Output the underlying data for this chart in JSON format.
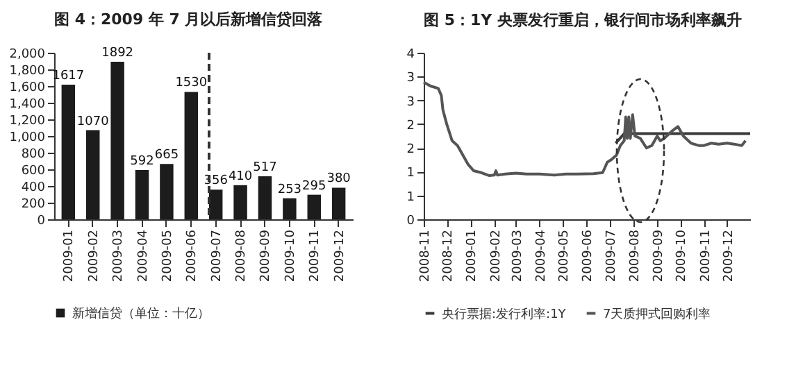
{
  "chart_data": [
    {
      "type": "bar",
      "title": "图 4：2009 年 7 月以后新增信贷回落",
      "categories": [
        "2009-01",
        "2009-02",
        "2009-03",
        "2009-04",
        "2009-05",
        "2009-06",
        "2009-07",
        "2009-08",
        "2009-09",
        "2009-10",
        "2009-11",
        "2009-12"
      ],
      "series": [
        {
          "name": "新增信贷（单位：十亿）",
          "color": "#1c1c1c",
          "values": [
            1617,
            1070,
            1892,
            592,
            665,
            1530,
            356,
            410,
            517,
            253,
            295,
            380
          ]
        }
      ],
      "data_labels": true,
      "ylim": [
        0,
        2000
      ],
      "yticks": [
        0,
        200,
        400,
        600,
        800,
        {
          "value": 1000,
          "label": "1,000"
        },
        {
          "value": 1200,
          "label": "1,200"
        },
        {
          "value": 1400,
          "label": "1,400"
        },
        {
          "value": 1600,
          "label": "1,600"
        },
        {
          "value": 1800,
          "label": "1,800"
        },
        {
          "value": 2000,
          "label": "2,000"
        }
      ],
      "ref_lines": [
        {
          "axis": "x",
          "value": "2009-07",
          "color": "#333333",
          "line_style": "dashed"
        }
      ],
      "legend": "bottom",
      "grid": false
    },
    {
      "type": "line",
      "title": "图 5：1Y 央票发行重启，银行间市场利率飙升",
      "series": [
        {
          "name": "央行票据:发行利率:1Y",
          "color": "#3a3a3a",
          "x": [
            "2009-07-09",
            "2009-07-20",
            "2009-12-31"
          ],
          "values": [
            1.6,
            1.8,
            1.8
          ]
        },
        {
          "name": "7天质押式回购利率",
          "color": "#555555",
          "x": [
            "2008-11-01",
            "2008-11-10",
            "2008-11-20",
            "2008-11-24",
            "2008-11-26",
            "2008-12-01",
            "2008-12-08",
            "2008-12-15",
            "2008-12-22",
            "2008-12-29",
            "2009-01-05",
            "2009-01-15",
            "2009-01-25",
            "2009-02-01",
            "2009-02-03",
            "2009-02-05",
            "2009-02-15",
            "2009-03-01",
            "2009-03-15",
            "2009-04-01",
            "2009-04-20",
            "2009-05-05",
            "2009-05-20",
            "2009-06-10",
            "2009-06-22",
            "2009-06-28",
            "2009-07-03",
            "2009-07-10",
            "2009-07-15",
            "2009-07-20",
            "2009-07-22",
            "2009-07-24",
            "2009-07-26",
            "2009-07-28",
            "2009-07-31",
            "2009-08-03",
            "2009-08-10",
            "2009-08-18",
            "2009-08-25",
            "2009-09-01",
            "2009-09-05",
            "2009-09-10",
            "2009-09-20",
            "2009-09-28",
            "2009-10-05",
            "2009-10-15",
            "2009-10-25",
            "2009-11-01",
            "2009-11-10",
            "2009-11-20",
            "2009-12-01",
            "2009-12-10",
            "2009-12-20",
            "2009-12-25"
          ],
          "values": [
            2.88,
            2.8,
            2.75,
            2.6,
            2.3,
            2.0,
            1.65,
            1.55,
            1.35,
            1.15,
            1.02,
            0.98,
            0.92,
            0.93,
            1.02,
            0.93,
            0.95,
            0.97,
            0.95,
            0.95,
            0.93,
            0.95,
            0.95,
            0.96,
            0.98,
            1.2,
            1.25,
            1.35,
            1.55,
            1.65,
            2.15,
            1.7,
            2.15,
            1.7,
            2.2,
            1.75,
            1.7,
            1.5,
            1.55,
            1.75,
            1.65,
            1.7,
            1.85,
            1.95,
            1.75,
            1.6,
            1.55,
            1.55,
            1.6,
            1.58,
            1.6,
            1.58,
            1.55,
            1.65
          ]
        }
      ],
      "xlim": [
        "2008-11-01",
        "2009-12-31"
      ],
      "xticks": [
        "2008-11",
        "2008-12",
        "2009-01",
        "2009-02",
        "2009-03",
        "2009-04",
        "2009-05",
        "2009-06",
        "2009-07",
        "2009-08",
        "2009-09",
        "2009-10",
        "2009-11",
        "2009-12"
      ],
      "ylim": [
        0,
        3.5
      ],
      "yticks": [
        0,
        {
          "value": 0.5,
          "label": "1"
        },
        1,
        {
          "value": 1.5,
          "label": "2"
        },
        2,
        {
          "value": 2.5,
          "label": "3"
        },
        3,
        {
          "value": 3.5,
          "label": "4"
        }
      ],
      "legend": "bottom",
      "grid": false,
      "marker": "none",
      "line_style": "solid"
    }
  ]
}
